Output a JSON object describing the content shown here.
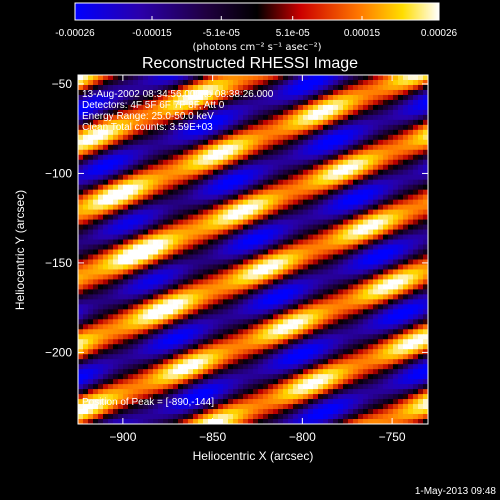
{
  "chart_data": {
    "type": "heatmap",
    "colorbar": {
      "ticks": [
        "-0.00026",
        "-0.00015",
        "-5.1e-05",
        "5.1e-05",
        "0.00015",
        "0.00026"
      ],
      "tick_values": [
        -0.00026,
        -0.00015,
        -5.1e-05,
        5.1e-05,
        0.00015,
        0.00026
      ],
      "range": [
        -0.00026,
        0.00026
      ],
      "unit_label": "(photons cm⁻² s⁻¹ asec⁻²)"
    },
    "title": "Reconstructed RHESSI Image",
    "xlabel": "Heliocentric X (arcsec)",
    "ylabel": "Heliocentric Y (arcsec)",
    "xlim": [
      -925,
      -730
    ],
    "ylim": [
      -240,
      -45
    ],
    "x_ticks": [
      -900,
      -850,
      -800,
      -750
    ],
    "y_ticks": [
      -50,
      -100,
      -150,
      -200
    ],
    "annotations": [
      "13-Aug-2002 08:34:56.000 to 08:38:26.000",
      "Detectors: 4F 5F 6F 7F 8F, Att 0",
      "Energy Range: 25.0-50.0 keV",
      "Clean     Total counts: 3.59E+03"
    ],
    "peak_label": "Position of Peak = [-890,-144]",
    "peak": [
      -890,
      -144
    ],
    "fringe_angle_deg": -22,
    "colors": {
      "stops": [
        "#0000ff",
        "#1a0066",
        "#000000",
        "#cc0000",
        "#ff6600",
        "#ffdd00",
        "#ffffff"
      ]
    }
  },
  "footer": {
    "timestamp": "1-May-2013 09:48"
  }
}
